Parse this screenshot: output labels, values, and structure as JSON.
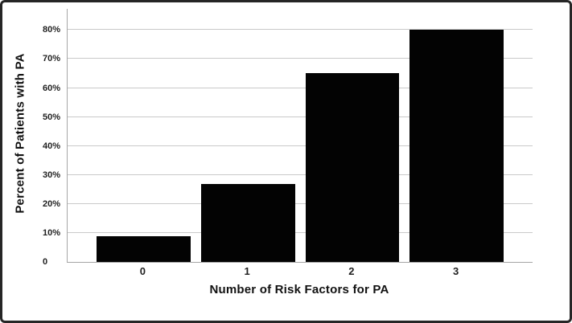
{
  "figure": {
    "background_color": "#ffffff",
    "border_color": "#262626"
  },
  "chart_data": {
    "type": "bar",
    "title": "",
    "categories": [
      "0",
      "1",
      "2",
      "3"
    ],
    "values": [
      9,
      27,
      65,
      80
    ],
    "xlabel": "Number of Risk Factors for PA",
    "ylabel": "Percent of Patients with PA",
    "y_ticks": [
      {
        "value": 0,
        "label": "0"
      },
      {
        "value": 10,
        "label": "10%"
      },
      {
        "value": 20,
        "label": "20%"
      },
      {
        "value": 30,
        "label": "30%"
      },
      {
        "value": 40,
        "label": "40%"
      },
      {
        "value": 50,
        "label": "50%"
      },
      {
        "value": 60,
        "label": "60%"
      },
      {
        "value": 70,
        "label": "70%"
      },
      {
        "value": 80,
        "label": "80%"
      }
    ],
    "ylim": [
      0,
      87.3
    ],
    "grid": true,
    "legend_position": "none",
    "bar_color": "#030303",
    "axis_color": "#a6a6a6",
    "gridline_color": "#c9c9c9"
  }
}
